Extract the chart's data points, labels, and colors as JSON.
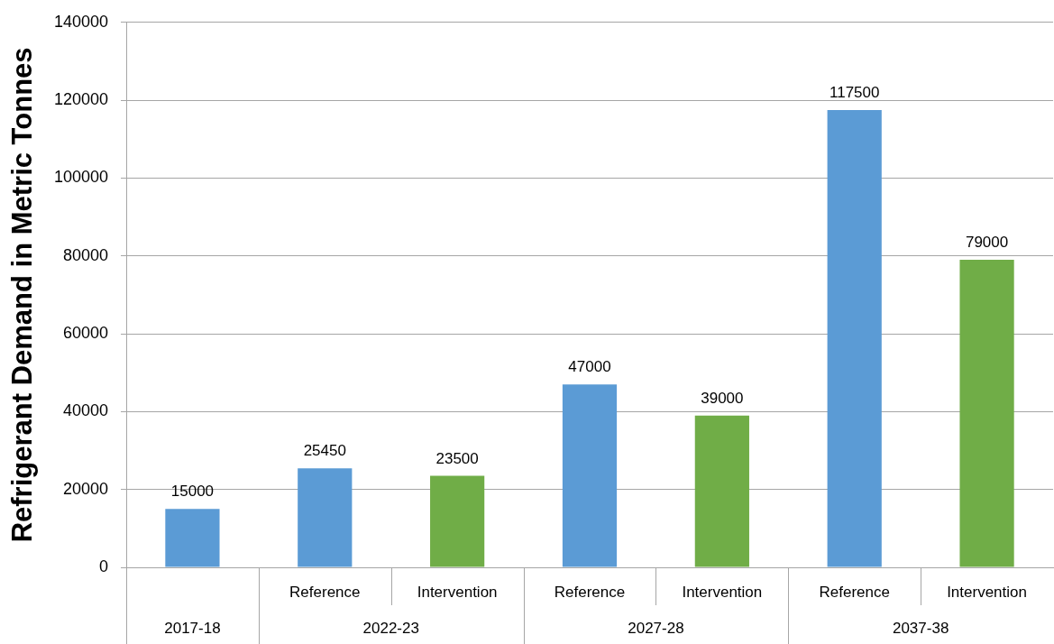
{
  "chart_data": {
    "type": "bar",
    "ylabel": "Refrigerant Demand in Metric Tonnes",
    "categories": [
      "2017-18",
      "2022-23",
      "2027-28",
      "2037-38"
    ],
    "series": [
      {
        "name": "Reference",
        "color": "#5b9bd5",
        "values": [
          15000,
          25450,
          47000,
          117500
        ]
      },
      {
        "name": "Intervention",
        "color": "#70ad47",
        "values": [
          null,
          23500,
          39000,
          79000
        ]
      }
    ],
    "ylim": [
      0,
      140000
    ],
    "yticks": [
      0,
      20000,
      40000,
      60000,
      80000,
      100000,
      120000,
      140000
    ],
    "grid": "y",
    "data_labels": true
  }
}
